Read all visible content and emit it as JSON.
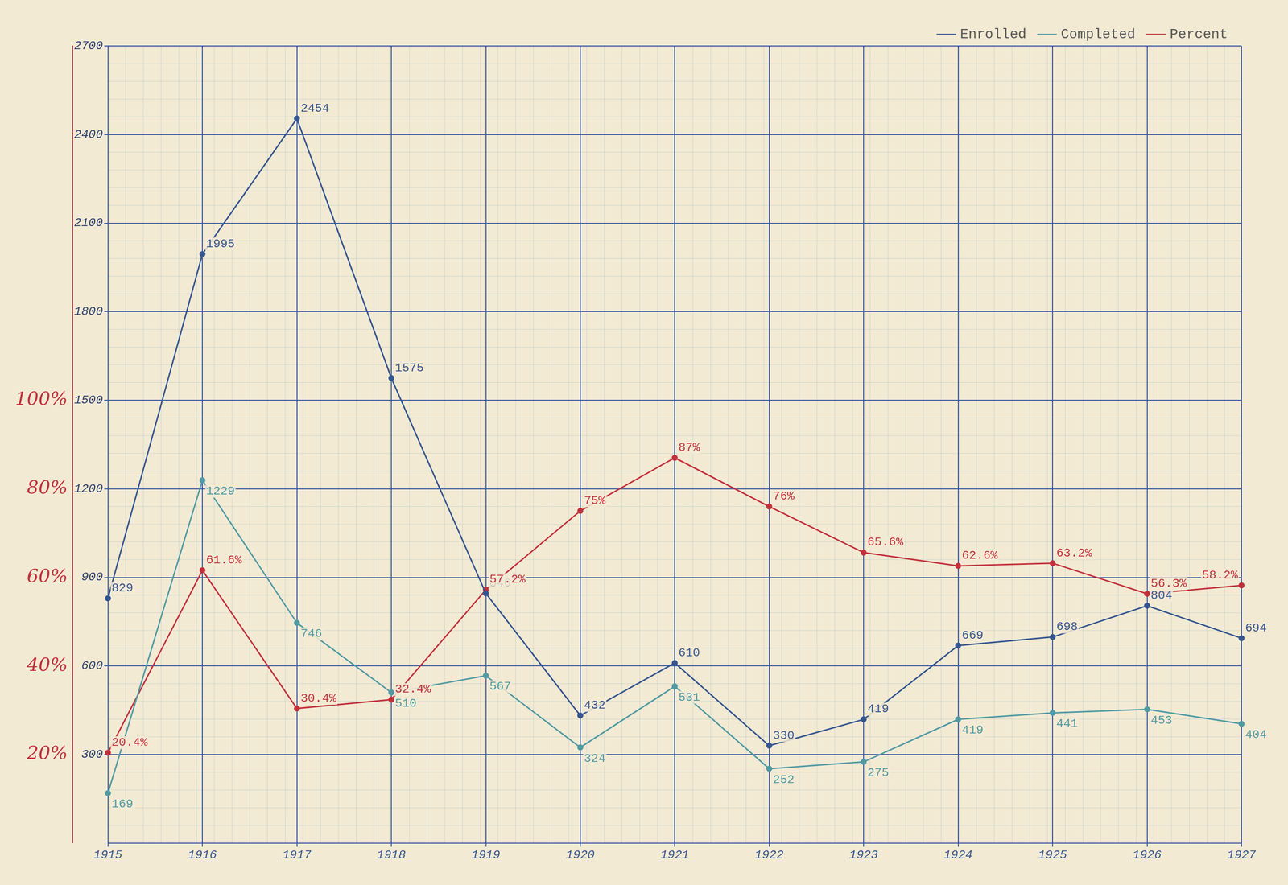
{
  "chart_data": {
    "type": "line",
    "categories": [
      "1915",
      "1916",
      "1917",
      "1918",
      "1919",
      "1920",
      "1921",
      "1922",
      "1923",
      "1924",
      "1925",
      "1926",
      "1927"
    ],
    "series": [
      {
        "name": "Enrolled",
        "color": "#34558f",
        "values": [
          829,
          1995,
          2454,
          1575,
          846,
          432,
          610,
          330,
          419,
          669,
          698,
          804,
          694
        ]
      },
      {
        "name": "Completed",
        "color": "#4f9aa3",
        "values": [
          169,
          1229,
          746,
          510,
          567,
          324,
          531,
          252,
          275,
          419,
          441,
          453,
          404
        ]
      },
      {
        "name": "Percent",
        "color": "#c2303c",
        "axis": "y2",
        "values": [
          20.4,
          61.6,
          30.4,
          32.4,
          57.2,
          75,
          87,
          76,
          65.6,
          62.6,
          63.2,
          56.3,
          58.2
        ],
        "value_labels": [
          "20.4%",
          "61.6%",
          "30.4%",
          "32.4%",
          "57.2%",
          "75%",
          "87%",
          "76%",
          "65.6%",
          "62.6%",
          "63.2%",
          "56.3%",
          "58.2%"
        ]
      }
    ],
    "ylim": [
      0,
      2700
    ],
    "yticks": [
      300,
      600,
      900,
      1200,
      1500,
      1800,
      2100,
      2400,
      2700
    ],
    "y2lim": [
      0,
      180
    ],
    "y2ticks": [
      {
        "value": 20,
        "label": "20%"
      },
      {
        "value": 40,
        "label": "40%"
      },
      {
        "value": 60,
        "label": "60%"
      },
      {
        "value": 80,
        "label": "80%"
      },
      {
        "value": 100,
        "label": "100%"
      }
    ],
    "grid": true,
    "data_labels": true,
    "legend": "top right"
  }
}
